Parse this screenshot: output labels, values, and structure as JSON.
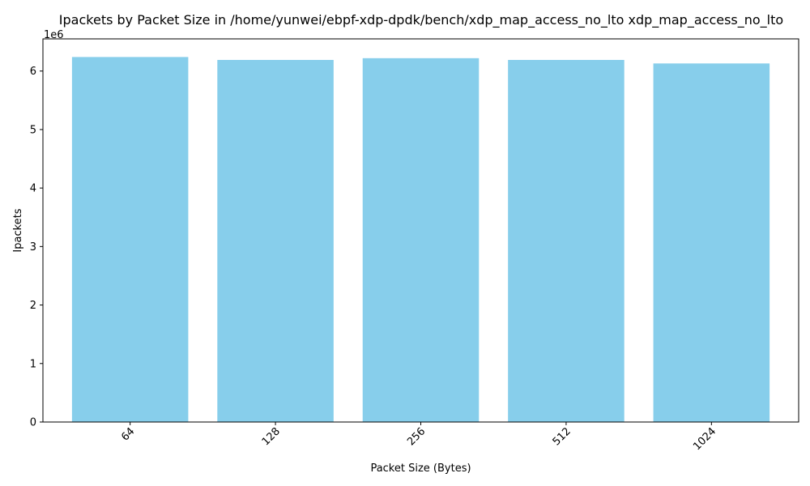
{
  "chart_data": {
    "type": "bar",
    "title": "Ipackets by Packet Size in /home/yunwei/ebpf-xdp-dpdk/bench/xdp_map_access_no_lto xdp_map_access_no_lto",
    "xlabel": "Packet Size (Bytes)",
    "ylabel": "Ipackets",
    "y_offset_label": "1e6",
    "categories": [
      "64",
      "128",
      "256",
      "512",
      "1024"
    ],
    "values": [
      6240000,
      6190000,
      6220000,
      6190000,
      6130000
    ],
    "ylim": [
      0,
      6550000
    ],
    "y_ticks": [
      0,
      1000000,
      2000000,
      3000000,
      4000000,
      5000000,
      6000000
    ],
    "y_tick_labels": [
      "0",
      "1",
      "2",
      "3",
      "4",
      "5",
      "6"
    ],
    "x_tick_rotation": "45 degrees",
    "bar_color": "#87ceeb",
    "grid": false,
    "legend": "none"
  }
}
